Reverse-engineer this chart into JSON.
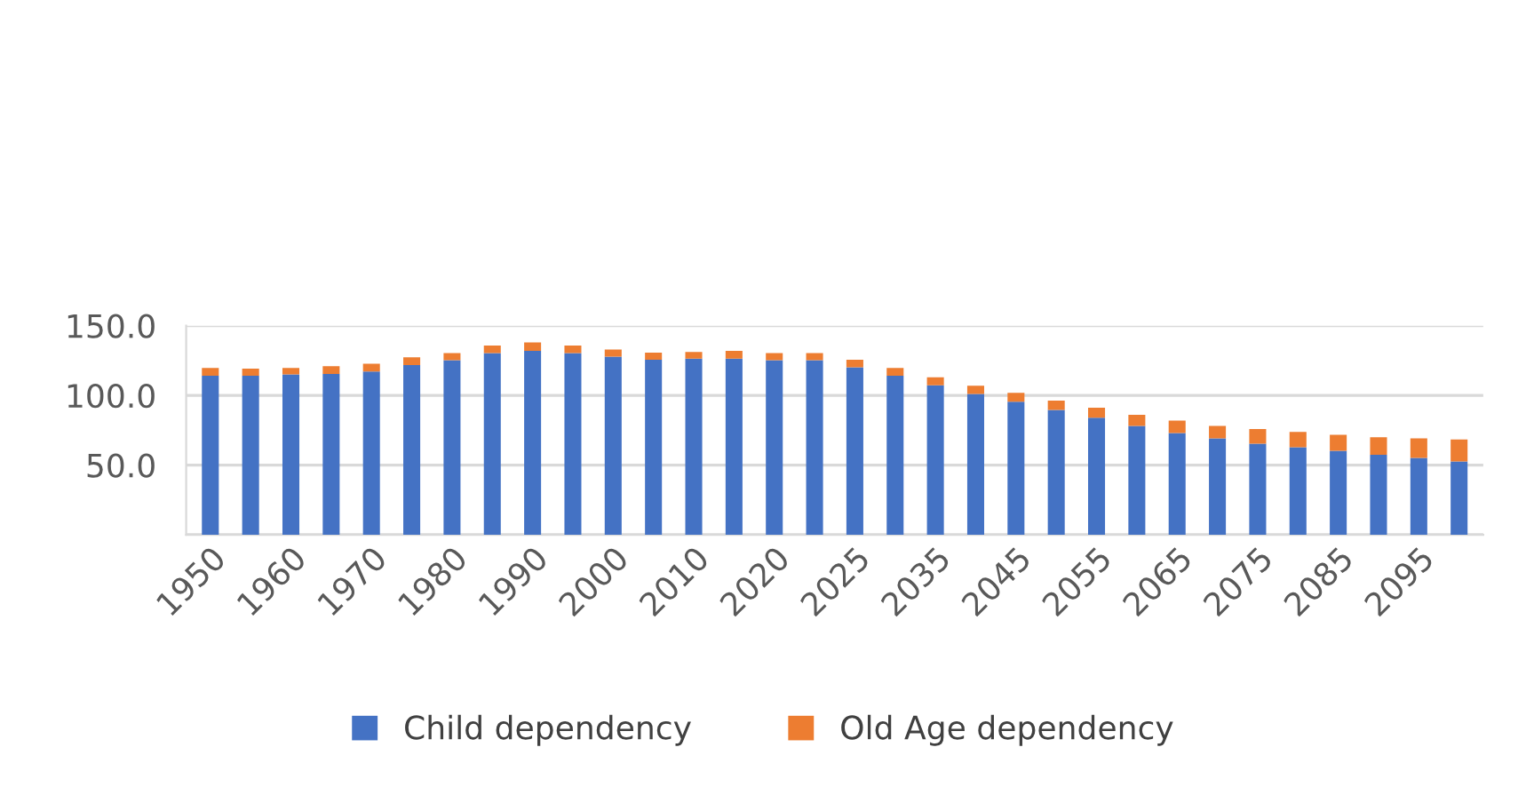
{
  "chart_data": {
    "type": "bar",
    "stacked": true,
    "categories": [
      "1950",
      null,
      "1960",
      null,
      "1970",
      null,
      "1980",
      null,
      "1990",
      null,
      "2000",
      null,
      "2010",
      null,
      "2020",
      null,
      "2025",
      null,
      "2035",
      null,
      "2045",
      null,
      "2055",
      null,
      "2065",
      null,
      "2075",
      null,
      "2085",
      null,
      "2095",
      null
    ],
    "series": [
      {
        "name": "Child dependency",
        "color": "#4472c4",
        "values": [
          114.1,
          114.1,
          115.0,
          115.4,
          117.1,
          121.8,
          125.2,
          130.3,
          131.9,
          130.3,
          127.7,
          125.6,
          126.4,
          126.4,
          125.2,
          125.2,
          120.1,
          114.1,
          107.3,
          101.0,
          95.5,
          89.5,
          84.0,
          78.1,
          73.0,
          69.2,
          65.3,
          62.8,
          60.2,
          57.3,
          55.2,
          52.6
        ]
      },
      {
        "name": "Old Age dependency",
        "color": "#ed7d31",
        "values": [
          5.5,
          5.1,
          4.6,
          5.5,
          5.6,
          5.5,
          5.1,
          5.5,
          6.0,
          5.5,
          5.1,
          5.1,
          4.7,
          5.6,
          5.1,
          5.1,
          5.5,
          5.5,
          5.6,
          5.9,
          6.3,
          6.8,
          7.2,
          8.0,
          8.9,
          8.9,
          10.6,
          11.0,
          11.5,
          12.7,
          14.0,
          15.7
        ]
      }
    ],
    "ylim": [
      0,
      150
    ],
    "yticks": [
      {
        "value": 0,
        "label": null
      },
      {
        "value": 50,
        "label": "50.0"
      },
      {
        "value": 100,
        "label": "100.0"
      },
      {
        "value": 150,
        "label": "150.0"
      }
    ],
    "grid": "y",
    "legend": "bottom"
  }
}
